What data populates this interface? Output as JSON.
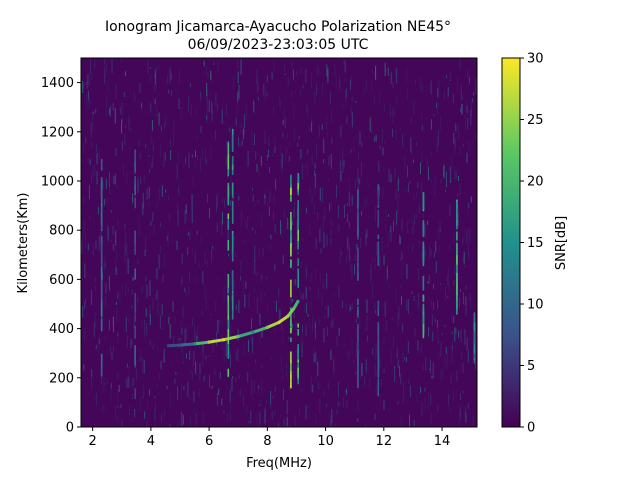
{
  "chart_data": {
    "type": "heatmap",
    "title": "Ionogram Jicamarca-Ayacucho Polarization NE45°",
    "subtitle": "06/09/2023-23:03:05 UTC",
    "xlabel": "Freq(MHz)",
    "ylabel": "Kilometers(Km)",
    "colorbar_label": "SNR[dB]",
    "colormap": "viridis",
    "colormap_stops": [
      "#440154",
      "#3b528b",
      "#21918c",
      "#5ec962",
      "#fde725"
    ],
    "xlim": [
      1.6,
      15.2
    ],
    "ylim": [
      0,
      1500
    ],
    "clim": [
      0,
      30
    ],
    "x_ticks": [
      2,
      4,
      6,
      8,
      10,
      12,
      14
    ],
    "y_ticks": [
      0,
      200,
      400,
      600,
      800,
      1000,
      1200,
      1400
    ],
    "colorbar_ticks": [
      0,
      5,
      10,
      15,
      20,
      25,
      30
    ],
    "background_snr": 0.5,
    "echo_trace": [
      {
        "x": 4.6,
        "y": 330,
        "snr": 6
      },
      {
        "x": 5.0,
        "y": 333,
        "snr": 8
      },
      {
        "x": 5.5,
        "y": 338,
        "snr": 14
      },
      {
        "x": 6.0,
        "y": 345,
        "snr": 26
      },
      {
        "x": 6.5,
        "y": 355,
        "snr": 28
      },
      {
        "x": 7.0,
        "y": 368,
        "snr": 22
      },
      {
        "x": 7.5,
        "y": 385,
        "snr": 14
      },
      {
        "x": 8.0,
        "y": 405,
        "snr": 24
      },
      {
        "x": 8.4,
        "y": 425,
        "snr": 28
      },
      {
        "x": 8.7,
        "y": 450,
        "snr": 26
      },
      {
        "x": 8.9,
        "y": 480,
        "snr": 22
      },
      {
        "x": 9.05,
        "y": 510,
        "snr": 18
      }
    ],
    "vertical_streaks": [
      {
        "x": 2.3,
        "y0": 200,
        "y1": 1050,
        "snr": 14
      },
      {
        "x": 3.45,
        "y0": 100,
        "y1": 1150,
        "snr": 10
      },
      {
        "x": 6.65,
        "y0": 200,
        "y1": 1120,
        "snr": 24
      },
      {
        "x": 6.8,
        "y0": 250,
        "y1": 1150,
        "snr": 18
      },
      {
        "x": 8.8,
        "y0": 150,
        "y1": 1000,
        "snr": 28
      },
      {
        "x": 9.05,
        "y0": 100,
        "y1": 1000,
        "snr": 24
      },
      {
        "x": 11.1,
        "y0": 150,
        "y1": 1000,
        "snr": 12
      },
      {
        "x": 11.8,
        "y0": 100,
        "y1": 950,
        "snr": 10
      },
      {
        "x": 13.35,
        "y0": 350,
        "y1": 900,
        "snr": 20
      },
      {
        "x": 14.5,
        "y0": 450,
        "y1": 900,
        "snr": 26
      },
      {
        "x": 15.1,
        "y0": 250,
        "y1": 400,
        "snr": 16
      }
    ]
  }
}
